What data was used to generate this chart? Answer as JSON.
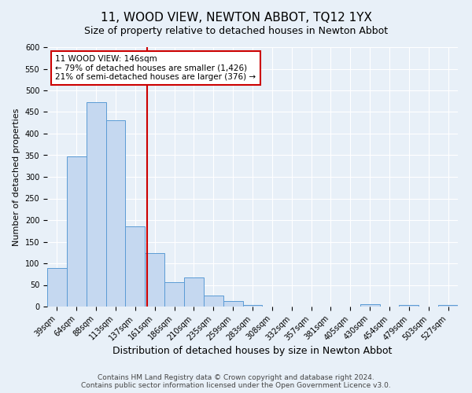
{
  "title": "11, WOOD VIEW, NEWTON ABBOT, TQ12 1YX",
  "subtitle": "Size of property relative to detached houses in Newton Abbot",
  "xlabel": "Distribution of detached houses by size in Newton Abbot",
  "ylabel": "Number of detached properties",
  "bin_labels": [
    "39sqm",
    "64sqm",
    "88sqm",
    "113sqm",
    "137sqm",
    "161sqm",
    "186sqm",
    "210sqm",
    "235sqm",
    "259sqm",
    "283sqm",
    "308sqm",
    "332sqm",
    "357sqm",
    "381sqm",
    "405sqm",
    "430sqm",
    "454sqm",
    "479sqm",
    "503sqm",
    "527sqm"
  ],
  "bar_values": [
    90,
    348,
    472,
    430,
    185,
    123,
    57,
    67,
    25,
    12,
    3,
    0,
    0,
    0,
    0,
    0,
    5,
    0,
    3,
    0,
    3
  ],
  "bar_color": "#c5d8f0",
  "bar_edge_color": "#5b9bd5",
  "vline_x_idx": 4.62,
  "vline_color": "#cc0000",
  "annotation_line1": "11 WOOD VIEW: 146sqm",
  "annotation_line2": "← 79% of detached houses are smaller (1,426)",
  "annotation_line3": "21% of semi-detached houses are larger (376) →",
  "annotation_box_color": "#ffffff",
  "annotation_box_edge": "#cc0000",
  "ylim": [
    0,
    600
  ],
  "yticks": [
    0,
    50,
    100,
    150,
    200,
    250,
    300,
    350,
    400,
    450,
    500,
    550,
    600
  ],
  "footer1": "Contains HM Land Registry data © Crown copyright and database right 2024.",
  "footer2": "Contains public sector information licensed under the Open Government Licence v3.0.",
  "background_color": "#e8f0f8",
  "plot_background": "#e8f0f8",
  "title_fontsize": 11,
  "xlabel_fontsize": 9,
  "ylabel_fontsize": 8,
  "tick_fontsize": 7,
  "footer_fontsize": 6.5
}
